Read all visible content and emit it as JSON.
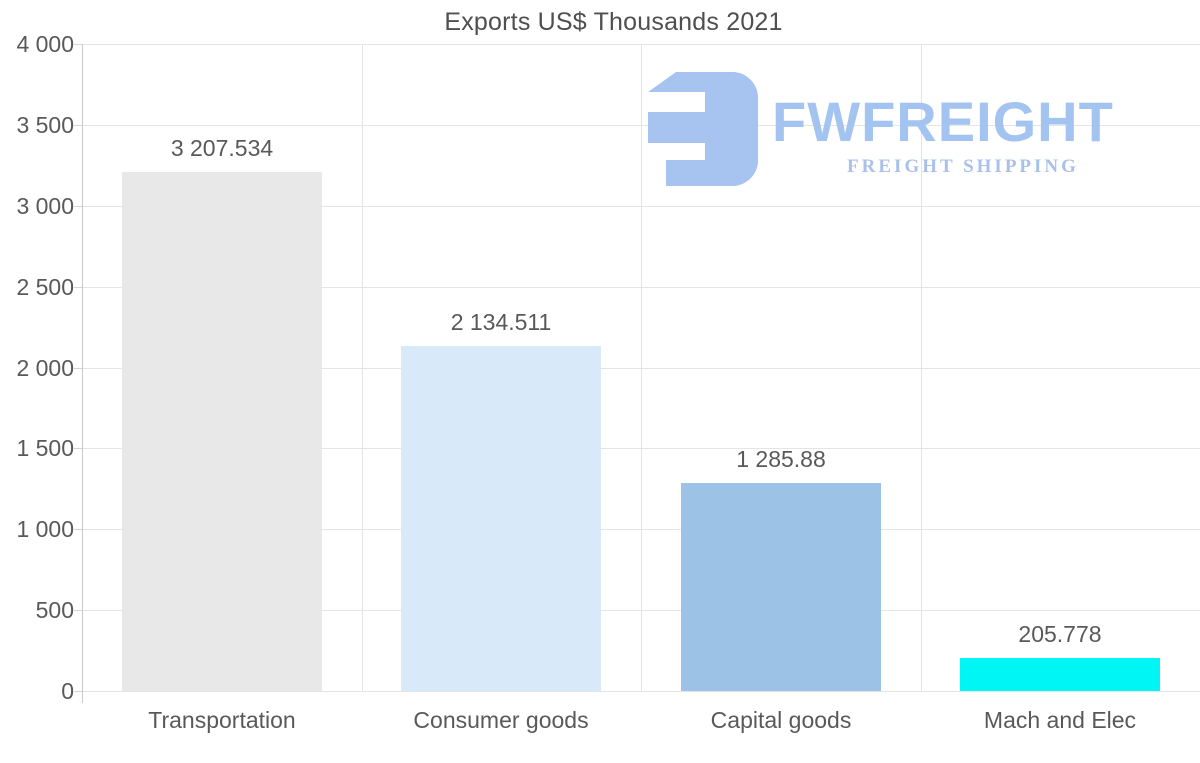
{
  "title": "Exports US$ Thousands 2021",
  "logo": {
    "brand": "FWFREIGHT",
    "tagline": "FREIGHT SHIPPING",
    "color": "#a7c4f0"
  },
  "chart_data": {
    "type": "bar",
    "title": "Exports US$ Thousands 2021",
    "categories": [
      "Transportation",
      "Consumer goods",
      "Capital goods",
      "Mach and Elec"
    ],
    "values": [
      3207.534,
      2134.511,
      1285.88,
      205.778
    ],
    "value_labels": [
      "3 207.534",
      "2 134.511",
      "1 285.88",
      "205.778"
    ],
    "bar_colors": [
      "#e8e8e8",
      "#d8e9fa",
      "#9cc3e6",
      "#00f5f5"
    ],
    "xlabel": "",
    "ylabel": "",
    "ylim": [
      0,
      4000
    ],
    "ytick_step": 500,
    "ytick_labels": [
      "0",
      "500",
      "1 000",
      "1 500",
      "2 000",
      "2 500",
      "3 000",
      "3 500",
      "4 000"
    ],
    "grid": true,
    "legend": false,
    "text_color": "#595959",
    "grid_color": "#e4e4e4",
    "axis_color": "#c9c9c9"
  }
}
